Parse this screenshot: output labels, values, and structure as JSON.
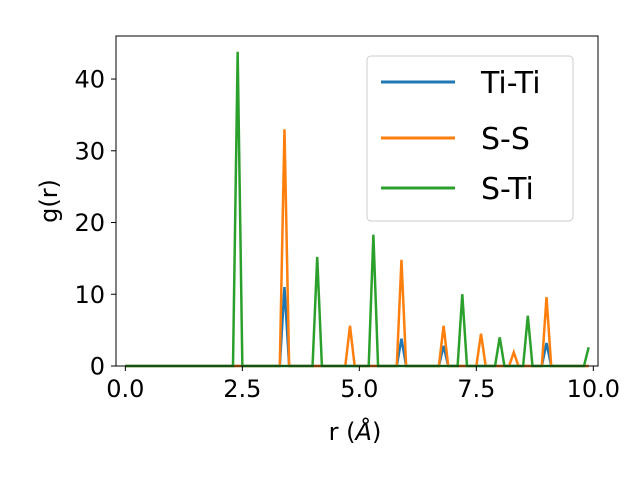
{
  "chart_data": {
    "type": "line",
    "xlabel_main": "r (",
    "xlabel_unit": "Å",
    "xlabel_close": ")",
    "ylabel": "g(r)",
    "xlim": [
      -0.2,
      10.1
    ],
    "ylim": [
      0,
      46
    ],
    "xticks": [
      0.0,
      2.5,
      5.0,
      7.5,
      10.0
    ],
    "xtick_labels": [
      "0.0",
      "2.5",
      "5.0",
      "7.5",
      "10.0"
    ],
    "yticks": [
      0,
      10,
      20,
      30,
      40
    ],
    "ytick_labels": [
      "0",
      "10",
      "20",
      "30",
      "40"
    ],
    "grid": false,
    "legend_position": "top-right",
    "x": [
      0.0,
      2.3,
      2.4,
      2.5,
      3.3,
      3.4,
      3.5,
      4.0,
      4.1,
      4.2,
      4.7,
      4.8,
      4.9,
      5.2,
      5.3,
      5.4,
      5.8,
      5.9,
      6.0,
      6.7,
      6.8,
      6.9,
      7.1,
      7.2,
      7.3,
      7.5,
      7.6,
      7.7,
      7.9,
      8.0,
      8.1,
      8.2,
      8.3,
      8.4,
      8.5,
      8.6,
      8.7,
      8.9,
      9.0,
      9.1,
      9.8,
      9.9
    ],
    "series": [
      {
        "name": "Ti-Ti",
        "color": "#1f77b4",
        "values": [
          0,
          0,
          0,
          0,
          0,
          11.0,
          0,
          0,
          0,
          0,
          0,
          0,
          0,
          0,
          0,
          0,
          0,
          3.8,
          0,
          0,
          2.8,
          0,
          0,
          0,
          0,
          0,
          0,
          0,
          0,
          0,
          0,
          0,
          0,
          0,
          0,
          0,
          0,
          0,
          3.2,
          0,
          0,
          0
        ]
      },
      {
        "name": "S-S",
        "color": "#ff7f0e",
        "values": [
          0,
          0,
          0,
          0,
          0,
          33.0,
          0,
          0,
          0,
          0,
          0,
          5.6,
          0,
          0,
          0,
          0,
          0,
          14.8,
          0,
          0,
          5.6,
          0,
          0,
          0,
          0,
          0,
          4.5,
          0,
          0,
          0,
          0,
          0,
          1.9,
          0,
          0,
          0,
          0,
          0,
          9.6,
          0,
          0,
          0
        ]
      },
      {
        "name": "S-Ti",
        "color": "#2ca02c",
        "values": [
          0,
          0,
          43.8,
          0,
          0,
          0,
          0,
          0,
          15.2,
          0,
          0,
          0,
          0,
          0,
          18.3,
          0,
          0,
          0,
          0,
          0,
          0,
          0,
          0,
          10.0,
          0,
          0,
          0,
          0,
          0,
          4.0,
          0,
          0,
          0,
          0,
          0,
          7.0,
          0,
          0,
          0,
          0,
          0,
          2.6
        ]
      }
    ]
  }
}
